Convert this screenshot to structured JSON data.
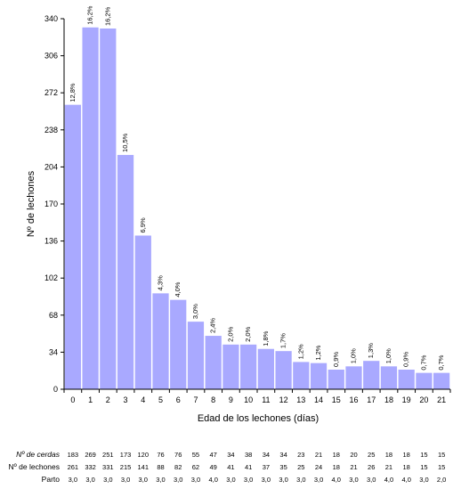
{
  "chart_data": {
    "type": "bar",
    "xlabel": "Edad de los lechones (días)",
    "ylabel": "Nº de lechones",
    "ylim": [
      0,
      340
    ],
    "yticks": [
      0,
      34,
      68,
      102,
      136,
      170,
      204,
      238,
      272,
      306,
      340
    ],
    "grid": false,
    "bar_color": "#a9a9ff",
    "categories": [
      "0",
      "1",
      "2",
      "3",
      "4",
      "5",
      "6",
      "7",
      "8",
      "9",
      "10",
      "11",
      "12",
      "13",
      "14",
      "15",
      "16",
      "17",
      "18",
      "19",
      "20",
      "21"
    ],
    "values": [
      261,
      332,
      331,
      215,
      141,
      88,
      82,
      62,
      49,
      41,
      41,
      37,
      35,
      25,
      24,
      18,
      21,
      26,
      21,
      18,
      15,
      15
    ],
    "data_labels": [
      "12,8%",
      "16,2%",
      "16,2%",
      "10,5%",
      "6,9%",
      "4,3%",
      "4,0%",
      "3,0%",
      "2,4%",
      "2,0%",
      "2,0%",
      "1,8%",
      "1,7%",
      "1,2%",
      "1,2%",
      "0,9%",
      "1,0%",
      "1,3%",
      "1,0%",
      "0,9%",
      "0,7%",
      "0,7%"
    ]
  },
  "table": {
    "rows": [
      {
        "label": "Nº de cerdas",
        "italic": true,
        "values": [
          "183",
          "269",
          "251",
          "173",
          "120",
          "76",
          "76",
          "55",
          "47",
          "34",
          "38",
          "34",
          "34",
          "23",
          "21",
          "18",
          "20",
          "25",
          "18",
          "18",
          "15",
          "15"
        ]
      },
      {
        "label": "Nº de lechones",
        "italic": false,
        "values": [
          "261",
          "332",
          "331",
          "215",
          "141",
          "88",
          "82",
          "62",
          "49",
          "41",
          "41",
          "37",
          "35",
          "25",
          "24",
          "18",
          "21",
          "26",
          "21",
          "18",
          "15",
          "15"
        ]
      },
      {
        "label": "Parto",
        "italic": false,
        "values": [
          "3,0",
          "3,0",
          "3,0",
          "3,0",
          "3,0",
          "3,0",
          "3,0",
          "3,0",
          "4,0",
          "3,0",
          "3,0",
          "3,0",
          "3,0",
          "3,0",
          "3,0",
          "4,0",
          "3,0",
          "3,0",
          "4,0",
          "4,0",
          "3,0",
          "2,0"
        ]
      }
    ]
  }
}
